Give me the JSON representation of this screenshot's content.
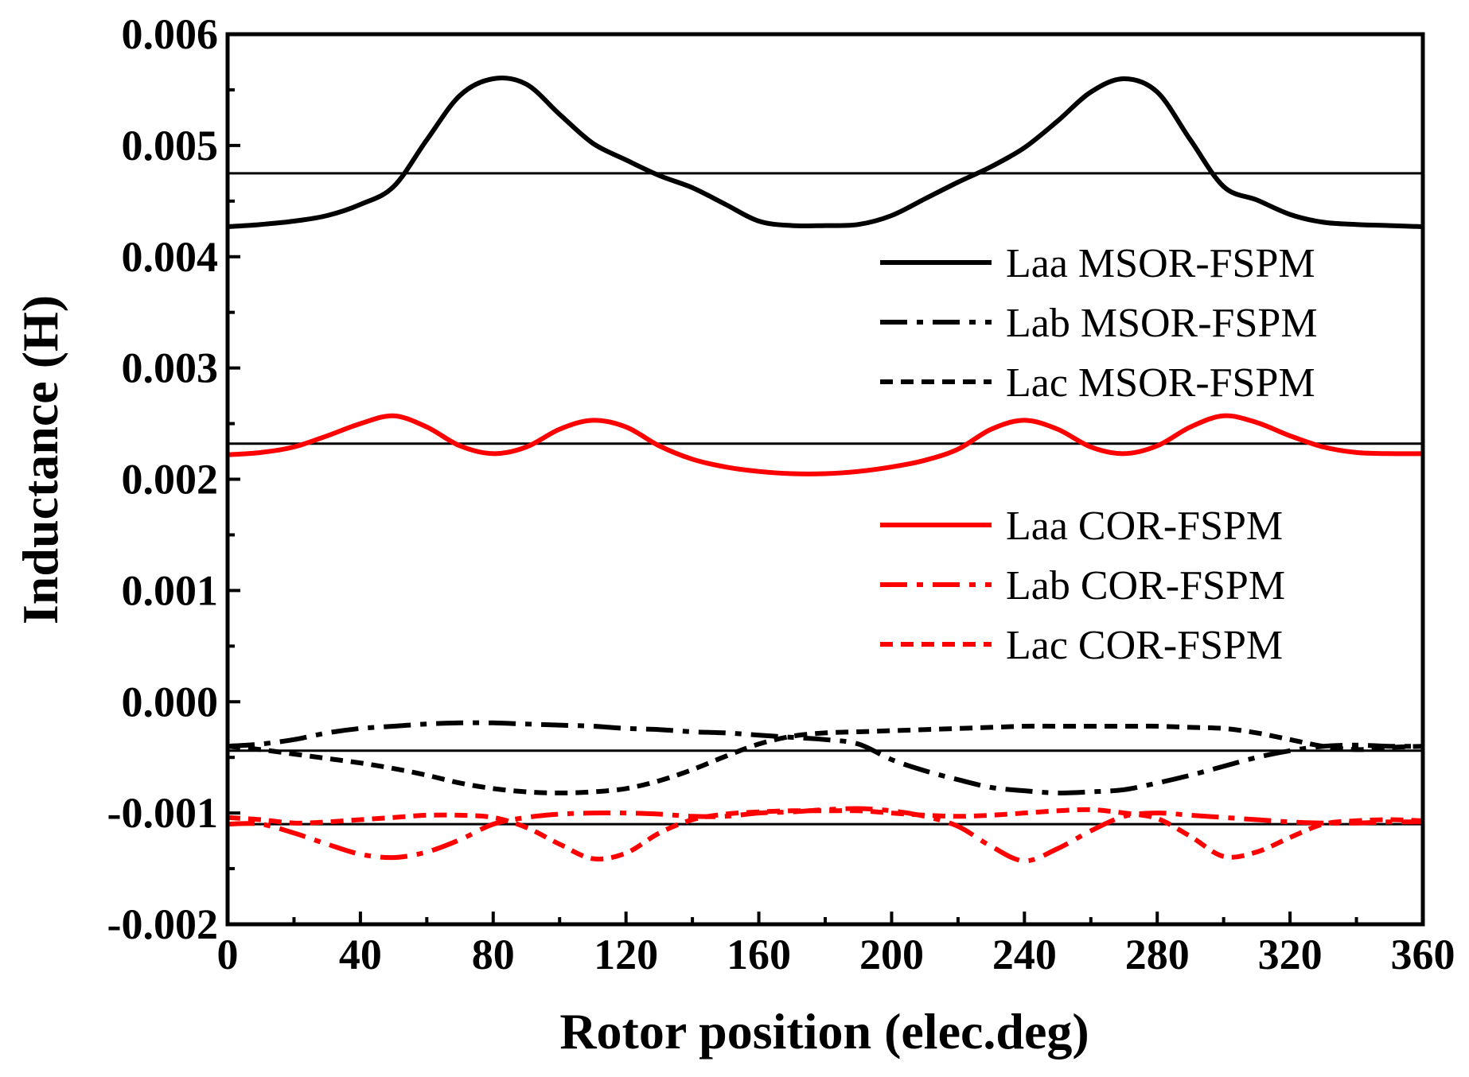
{
  "chart_data": {
    "type": "line",
    "xlabel": "Rotor position (elec.deg)",
    "ylabel": "Inductance (H)",
    "xlim": [
      0,
      360
    ],
    "ylim": [
      -0.002,
      0.006
    ],
    "xticks": [
      0,
      40,
      80,
      120,
      160,
      200,
      240,
      280,
      320,
      360
    ],
    "xtick_labels": [
      "0",
      "40",
      "80",
      "120",
      "160",
      "200",
      "240",
      "280",
      "320",
      "360"
    ],
    "yticks": [
      -0.002,
      -0.001,
      0.0,
      0.001,
      0.002,
      0.003,
      0.004,
      0.005,
      0.006
    ],
    "ytick_labels": [
      "-0.002",
      "-0.001",
      "0.000",
      "0.001",
      "0.002",
      "0.003",
      "0.004",
      "0.005",
      "0.006"
    ],
    "x_minor_step": 20,
    "y_minor_step": 0.0005,
    "grid": false,
    "legend_position": "right",
    "reference_lines": [
      {
        "name": "Laa MSOR-FSPM average",
        "value": 0.00475,
        "color": "#000000"
      },
      {
        "name": "Laa COR-FSPM average",
        "value": 0.00232,
        "color": "#000000"
      },
      {
        "name": "Lab/Lac MSOR-FSPM average",
        "value": -0.00044,
        "color": "#000000"
      },
      {
        "name": "Lab/Lac COR-FSPM average",
        "value": -0.0011,
        "color": "#000000"
      }
    ],
    "series": [
      {
        "name": "Laa MSOR-FSPM",
        "color": "#000000",
        "dash": "solid",
        "x": [
          0,
          10,
          20,
          30,
          40,
          50,
          60,
          70,
          80,
          90,
          100,
          110,
          120,
          130,
          140,
          150,
          160,
          170,
          180,
          190,
          200,
          210,
          220,
          230,
          240,
          250,
          260,
          270,
          280,
          290,
          300,
          310,
          320,
          330,
          340,
          350,
          360
        ],
        "values": [
          0.00427,
          0.00429,
          0.00432,
          0.00437,
          0.00447,
          0.00463,
          0.00505,
          0.00545,
          0.0056,
          0.00555,
          0.00528,
          0.00502,
          0.00487,
          0.00473,
          0.00462,
          0.00447,
          0.00432,
          0.00428,
          0.00428,
          0.00429,
          0.00437,
          0.00452,
          0.00467,
          0.00481,
          0.00498,
          0.00522,
          0.00548,
          0.0056,
          0.00548,
          0.00505,
          0.00463,
          0.00451,
          0.00438,
          0.00431,
          0.00429,
          0.00428,
          0.00427
        ]
      },
      {
        "name": "Lab MSOR-FSPM",
        "color": "#000000",
        "dash": "dashdot",
        "x": [
          0,
          10,
          20,
          30,
          40,
          50,
          60,
          70,
          80,
          90,
          100,
          110,
          120,
          130,
          140,
          150,
          160,
          170,
          180,
          190,
          200,
          210,
          220,
          230,
          240,
          250,
          260,
          270,
          280,
          290,
          300,
          310,
          320,
          330,
          340,
          350,
          360
        ],
        "values": [
          -0.0004,
          -0.00038,
          -0.00034,
          -0.00028,
          -0.00024,
          -0.00022,
          -0.0002,
          -0.00019,
          -0.00019,
          -0.0002,
          -0.00021,
          -0.00022,
          -0.00024,
          -0.00025,
          -0.00027,
          -0.00028,
          -0.0003,
          -0.00032,
          -0.00034,
          -0.00038,
          -0.00052,
          -0.00062,
          -0.0007,
          -0.00077,
          -0.0008,
          -0.00082,
          -0.00081,
          -0.00079,
          -0.00073,
          -0.00066,
          -0.00058,
          -0.0005,
          -0.00044,
          -0.0004,
          -0.00039,
          -0.0004,
          -0.0004
        ]
      },
      {
        "name": "Lac MSOR-FSPM",
        "color": "#000000",
        "dash": "dash",
        "x": [
          0,
          10,
          20,
          30,
          40,
          50,
          60,
          70,
          80,
          90,
          100,
          110,
          120,
          130,
          140,
          150,
          160,
          170,
          180,
          190,
          200,
          210,
          220,
          230,
          240,
          250,
          260,
          270,
          280,
          290,
          300,
          310,
          320,
          330,
          340,
          350,
          360
        ],
        "values": [
          -0.0004,
          -0.00043,
          -0.00047,
          -0.00051,
          -0.00055,
          -0.0006,
          -0.00066,
          -0.00073,
          -0.00078,
          -0.00081,
          -0.00082,
          -0.00081,
          -0.00078,
          -0.00071,
          -0.00061,
          -0.00049,
          -0.00038,
          -0.00031,
          -0.00028,
          -0.00027,
          -0.00026,
          -0.00025,
          -0.00024,
          -0.00023,
          -0.00022,
          -0.00022,
          -0.00022,
          -0.00022,
          -0.00022,
          -0.00023,
          -0.00024,
          -0.00028,
          -0.00034,
          -0.0004,
          -0.00043,
          -0.00041,
          -0.0004
        ]
      },
      {
        "name": "Laa COR-FSPM",
        "color": "#ff0000",
        "dash": "solid",
        "x": [
          0,
          10,
          20,
          30,
          40,
          50,
          60,
          70,
          80,
          90,
          100,
          110,
          120,
          130,
          140,
          150,
          160,
          170,
          180,
          190,
          200,
          210,
          220,
          230,
          240,
          250,
          260,
          270,
          280,
          290,
          300,
          310,
          320,
          330,
          340,
          350,
          360
        ],
        "values": [
          0.00222,
          0.00224,
          0.00229,
          0.00239,
          0.0025,
          0.00257,
          0.00247,
          0.0023,
          0.00223,
          0.00229,
          0.00245,
          0.00253,
          0.00247,
          0.0023,
          0.00218,
          0.00211,
          0.00207,
          0.00205,
          0.00205,
          0.00207,
          0.00211,
          0.00217,
          0.00227,
          0.00245,
          0.00253,
          0.00245,
          0.00229,
          0.00223,
          0.0023,
          0.00247,
          0.00257,
          0.00251,
          0.00239,
          0.00229,
          0.00224,
          0.00223,
          0.00223
        ]
      },
      {
        "name": "Lab COR-FSPM",
        "color": "#ff0000",
        "dash": "dashdot",
        "x": [
          0,
          10,
          20,
          30,
          40,
          50,
          60,
          70,
          80,
          90,
          100,
          110,
          120,
          130,
          140,
          150,
          160,
          170,
          180,
          190,
          200,
          210,
          220,
          230,
          240,
          250,
          260,
          270,
          280,
          290,
          300,
          310,
          320,
          330,
          340,
          350,
          360
        ],
        "values": [
          -0.0011,
          -0.0011,
          -0.00118,
          -0.00128,
          -0.00137,
          -0.0014,
          -0.00135,
          -0.00124,
          -0.0011,
          -0.00104,
          -0.00101,
          -0.001,
          -0.001,
          -0.00101,
          -0.00103,
          -0.00103,
          -0.001,
          -0.00099,
          -0.00097,
          -0.00096,
          -0.00098,
          -0.00103,
          -0.00112,
          -0.0013,
          -0.00143,
          -0.00132,
          -0.00116,
          -0.00103,
          -0.001,
          -0.00102,
          -0.00104,
          -0.00106,
          -0.00108,
          -0.00109,
          -0.00109,
          -0.00108,
          -0.00108
        ]
      },
      {
        "name": "Lac COR-FSPM",
        "color": "#ff0000",
        "dash": "dash",
        "x": [
          0,
          10,
          20,
          30,
          40,
          50,
          60,
          70,
          80,
          90,
          100,
          110,
          120,
          130,
          140,
          150,
          160,
          170,
          180,
          190,
          200,
          210,
          220,
          230,
          240,
          250,
          260,
          270,
          280,
          290,
          300,
          310,
          320,
          330,
          340,
          350,
          360
        ],
        "values": [
          -0.00104,
          -0.00106,
          -0.00109,
          -0.00108,
          -0.00106,
          -0.00104,
          -0.00102,
          -0.00102,
          -0.00104,
          -0.00113,
          -0.00128,
          -0.00141,
          -0.00136,
          -0.00118,
          -0.00106,
          -0.00101,
          -0.00099,
          -0.00098,
          -0.00098,
          -0.00098,
          -0.001,
          -0.00102,
          -0.00103,
          -0.00102,
          -0.001,
          -0.00098,
          -0.00097,
          -0.001,
          -0.00105,
          -0.00121,
          -0.00139,
          -0.00135,
          -0.00122,
          -0.0011,
          -0.00107,
          -0.00106,
          -0.00107
        ]
      }
    ]
  }
}
